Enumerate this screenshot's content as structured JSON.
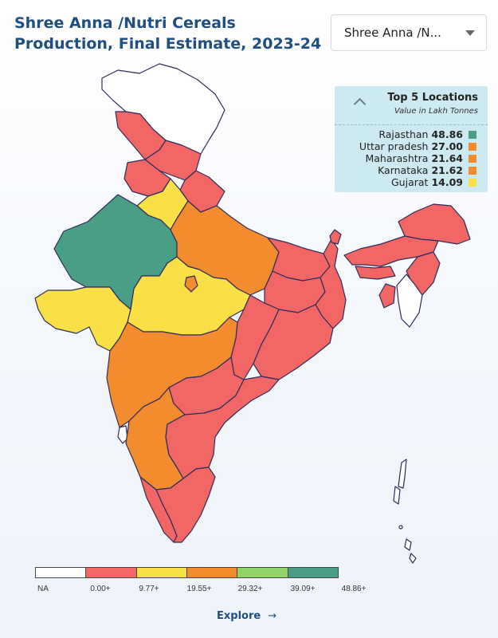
{
  "title": "Shree Anna /Nutri Cereals Production, Final Estimate, 2023-24",
  "dropdown": {
    "selected": "Shree Anna /N..."
  },
  "top_locations": {
    "title": "Top 5 Locations",
    "subtitle": "Value in Lakh Tonnes",
    "items": [
      {
        "name": "Rajasthan",
        "value": "48.86",
        "color": "#4a9e86"
      },
      {
        "name": "Uttar pradesh",
        "value": "27.00",
        "color": "#f28c2e"
      },
      {
        "name": "Maharashtra",
        "value": "21.64",
        "color": "#f28c2e"
      },
      {
        "name": "Karnataka",
        "value": "21.62",
        "color": "#f28c2e"
      },
      {
        "name": "Gujarat",
        "value": "14.09",
        "color": "#f9e047"
      }
    ]
  },
  "scale": {
    "labels": [
      "NA",
      "0.00+",
      "9.77+",
      "19.55+",
      "29.32+",
      "39.09+",
      "48.86+"
    ],
    "colors": [
      "#ffffff",
      "#f26665",
      "#f9e047",
      "#f28c2e",
      "#8fd369",
      "#4a9e86"
    ]
  },
  "map_colors": {
    "na": "#ffffff",
    "low": "#f26665",
    "mid": "#f9e047",
    "high": "#f28c2e",
    "top": "#4a9e86",
    "border": "#2e2c5a"
  },
  "explore": {
    "label": "Explore",
    "arrow": "→"
  }
}
